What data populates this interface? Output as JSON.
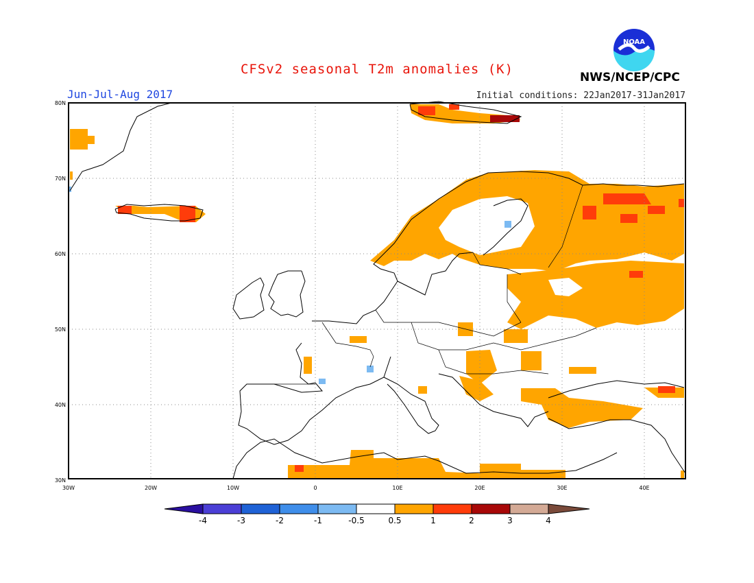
{
  "header": {
    "title": "CFSv2 seasonal T2m anomalies (K)",
    "season": "Jun-Jul-Aug 2017",
    "initial_conditions": "Initial conditions: 22Jan2017-31Jan2017",
    "agency": "NWS/NCEP/CPC",
    "logo_text": "NOAA"
  },
  "map": {
    "lon_labels": [
      "30W",
      "20W",
      "10W",
      "0",
      "10E",
      "20E",
      "30E",
      "40E"
    ],
    "lat_labels": [
      "30N",
      "40N",
      "50N",
      "60N",
      "70N",
      "80N"
    ],
    "lon_range": [
      -30,
      45
    ],
    "lat_range": [
      30,
      80
    ]
  },
  "colorbar": {
    "labels": [
      "-4",
      "-3",
      "-2",
      "-1",
      "-0.5",
      "0.5",
      "1",
      "2",
      "3",
      "4"
    ],
    "colors": [
      "#2a0fa0",
      "#4b3fd6",
      "#1f62d6",
      "#3f8eea",
      "#7cbaf2",
      "#ffffff",
      "#ffa500",
      "#ff3c0a",
      "#a80808",
      "#d4aa96",
      "#7a4a3a"
    ]
  }
}
